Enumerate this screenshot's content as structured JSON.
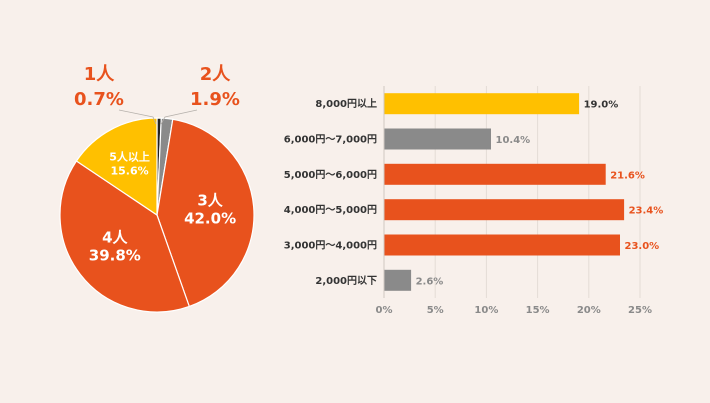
{
  "colors": {
    "background": "#f8f0eb",
    "orange": "#e8521d",
    "yellow": "#ffc000",
    "gray": "#8a8a8a",
    "black": "#222222",
    "grid": "#e4dcd6"
  },
  "chart_data": [
    {
      "type": "pie",
      "slices": [
        {
          "label": "1人",
          "value": 0.7,
          "value_label": "0.7%",
          "color": "#222222",
          "label_position": "outside"
        },
        {
          "label": "2人",
          "value": 1.9,
          "value_label": "1.9%",
          "color": "#8a8a8a",
          "label_position": "outside"
        },
        {
          "label": "3人",
          "value": 42.0,
          "value_label": "42.0%",
          "color": "#e8521d",
          "label_position": "inside"
        },
        {
          "label": "4人",
          "value": 39.8,
          "value_label": "39.8%",
          "color": "#e8521d",
          "label_position": "inside"
        },
        {
          "label": "5人以上",
          "value": 15.6,
          "value_label": "15.6%",
          "color": "#ffc000",
          "label_position": "inside"
        }
      ]
    },
    {
      "type": "bar",
      "orientation": "horizontal",
      "categories": [
        "8,000円以上",
        "6,000円～7,000円",
        "5,000円～6,000円",
        "4,000円～5,000円",
        "3,000円～4,000円",
        "2,000円以下"
      ],
      "values": [
        19.0,
        10.4,
        21.6,
        23.4,
        23.0,
        2.6
      ],
      "value_labels": [
        "19.0%",
        "10.4%",
        "21.6%",
        "23.4%",
        "23.0%",
        "2.6%"
      ],
      "bar_colors": [
        "#ffc000",
        "#8a8a8a",
        "#e8521d",
        "#e8521d",
        "#e8521d",
        "#8a8a8a"
      ],
      "label_colors": [
        "#333333",
        "#8a8a8a",
        "#e8521d",
        "#e8521d",
        "#e8521d",
        "#8a8a8a"
      ],
      "xlim": [
        0,
        25
      ],
      "xticks": [
        0,
        5,
        10,
        15,
        20,
        25
      ],
      "xtick_labels": [
        "0%",
        "5%",
        "10%",
        "15%",
        "20%",
        "25%"
      ],
      "grid": true
    }
  ]
}
